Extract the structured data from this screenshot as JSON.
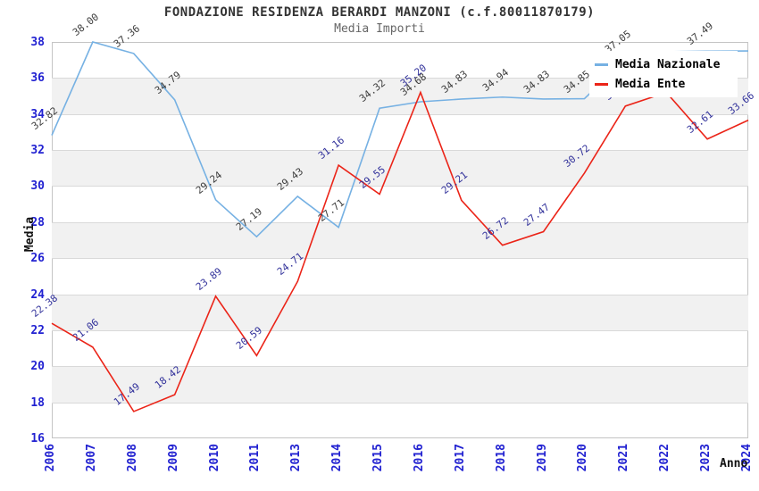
{
  "title": "FONDAZIONE RESIDENZA BERARDI MANZONI (c.f.80011870179)",
  "subtitle": "Media Importi",
  "axes": {
    "x_label": "Anno",
    "y_label": "Media",
    "tick_color": "#2121d1"
  },
  "colors": {
    "band_gray": "#f1f1f1",
    "grid": "#d9d9d9",
    "plot_border": "#c4c4c4"
  },
  "legend": {
    "position": "top-right"
  },
  "chart_data": {
    "type": "line",
    "title": "FONDAZIONE RESIDENZA BERARDI MANZONI (c.f.80011870179)",
    "subtitle": "Media Importi",
    "xlabel": "Anno",
    "ylabel": "Media",
    "ylim": [
      16,
      38
    ],
    "ytick_step": 2,
    "grid": "horizontal-bands",
    "legend_position": "top-right",
    "categories": [
      "2006",
      "2007",
      "2008",
      "2009",
      "2010",
      "2011",
      "2013",
      "2014",
      "2015",
      "2016",
      "2017",
      "2018",
      "2019",
      "2020",
      "2021",
      "2022",
      "2023",
      "2024"
    ],
    "series": [
      {
        "name": "Media Nazionale",
        "color": "#76b1e3",
        "label_color": "#3d3d3d",
        "values": [
          32.82,
          38.0,
          37.36,
          34.79,
          29.24,
          27.19,
          29.43,
          27.71,
          34.32,
          34.68,
          34.83,
          34.94,
          34.83,
          34.85,
          37.05,
          37.46,
          37.49,
          37.5
        ],
        "labels": [
          "32.82",
          "38.00",
          "37.36",
          "34.79",
          "29.24",
          "27.19",
          "29.43",
          "27.71",
          "34.32",
          "34.68",
          "34.83",
          "34.94",
          "34.83",
          "34.85",
          "37.05",
          "",
          "37.49",
          ""
        ]
      },
      {
        "name": "Media Ente",
        "color": "#eb2418",
        "label_color": "#32329b",
        "values": [
          22.38,
          21.06,
          17.49,
          18.42,
          23.89,
          20.59,
          24.71,
          31.16,
          29.55,
          35.2,
          29.21,
          26.72,
          27.47,
          30.72,
          34.44,
          35.2,
          32.61,
          33.66
        ],
        "labels": [
          "22.38",
          "21.06",
          "17.49",
          "18.42",
          "23.89",
          "20.59",
          "24.71",
          "31.16",
          "29.55",
          "35.20",
          "29.21",
          "26.72",
          "27.47",
          "30.72",
          "34.4",
          "",
          "32.61",
          "33.66"
        ]
      }
    ]
  }
}
